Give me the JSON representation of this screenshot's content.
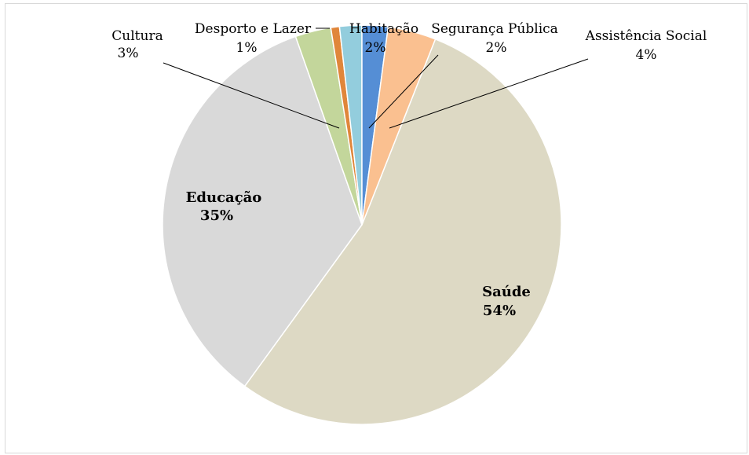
{
  "chart_data": {
    "type": "pie",
    "title": "",
    "slices": [
      {
        "name": "Saúde",
        "label": "Saúde",
        "percent_label": "54%",
        "value": 54.0,
        "color": "#ddd9c4",
        "bold": true
      },
      {
        "name": "Educação",
        "label": "Educação",
        "percent_label": "35%",
        "value": 34.6,
        "color": "#d9d9d9",
        "bold": true
      },
      {
        "name": "Cultura",
        "label": "Cultura",
        "percent_label": "3%",
        "value": 2.9,
        "color": "#c3d69b",
        "bold": false
      },
      {
        "name": "Desporto e Lazer",
        "label": "Desporto e Lazer",
        "percent_label": "1%",
        "value": 0.7,
        "color": "#e0863a",
        "bold": false
      },
      {
        "name": "Habitação",
        "label": "Habitação",
        "percent_label": "2%",
        "value": 1.8,
        "color": "#93cddd",
        "bold": false
      },
      {
        "name": "Segurança Pública",
        "label": "Segurança Pública",
        "percent_label": "2%",
        "value": 2.1,
        "color": "#558ed5",
        "bold": false
      },
      {
        "name": "Assistência Social",
        "label": "Assistência Social",
        "percent_label": "4%",
        "value": 3.9,
        "color": "#fac090",
        "bold": false
      }
    ],
    "legend": "none"
  }
}
